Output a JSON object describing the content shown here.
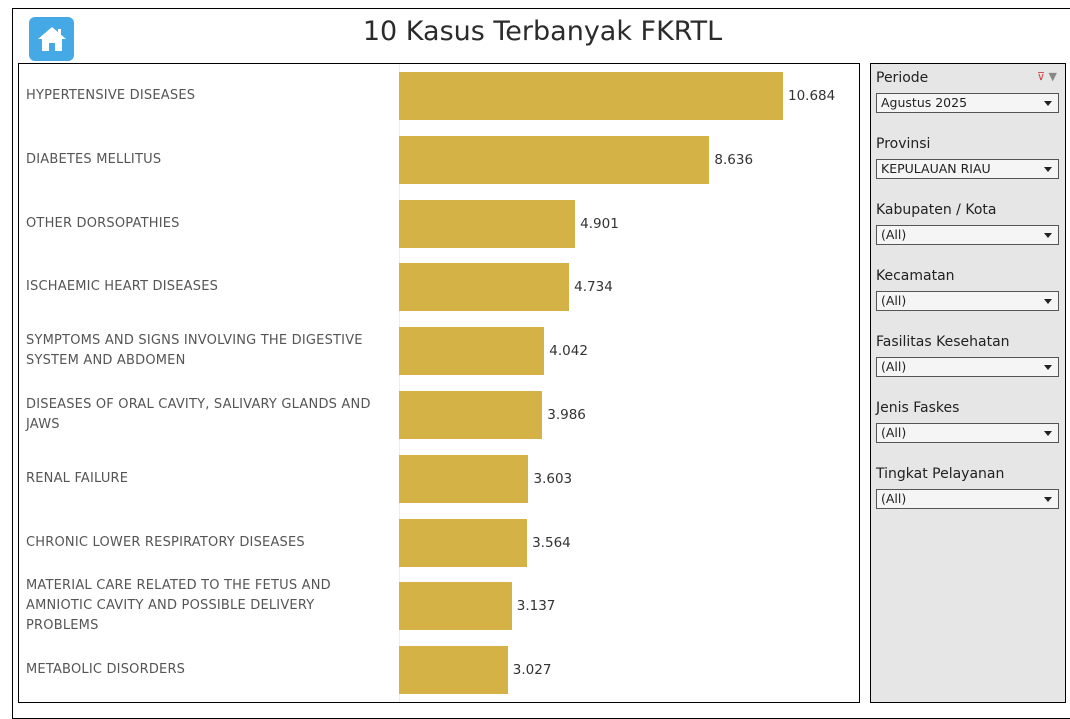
{
  "header": {
    "title": "10 Kasus Terbanyak FKRTL"
  },
  "colors": {
    "bar": "#d4b245",
    "home": "#45a9e6"
  },
  "chart_data": {
    "type": "bar",
    "orientation": "horizontal",
    "title": "10 Kasus Terbanyak FKRTL",
    "categories": [
      "HYPERTENSIVE DISEASES",
      "DIABETES MELLITUS",
      "OTHER DORSOPATHIES",
      "ISCHAEMIC HEART DISEASES",
      "SYMPTOMS AND SIGNS INVOLVING THE DIGESTIVE SYSTEM AND ABDOMEN",
      "DISEASES OF ORAL CAVITY, SALIVARY GLANDS AND JAWS",
      "RENAL FAILURE",
      "CHRONIC LOWER RESPIRATORY DISEASES",
      "MATERIAL CARE RELATED TO THE FETUS AND AMNIOTIC CAVITY AND POSSIBLE DELIVERY PROBLEMS",
      "METABOLIC DISORDERS"
    ],
    "values": [
      10684,
      8636,
      4901,
      4734,
      4042,
      3986,
      3603,
      3564,
      3137,
      3027
    ],
    "labels": [
      "10.684",
      "8.636",
      "4.901",
      "4.734",
      "4.042",
      "3.986",
      "3.603",
      "3.564",
      "3.137",
      "3.027"
    ],
    "xlim": [
      0,
      10684
    ]
  },
  "filters": [
    {
      "label": "Periode",
      "value": "Agustus 2025"
    },
    {
      "label": "Provinsi",
      "value": "KEPULAUAN RIAU"
    },
    {
      "label": "Kabupaten / Kota",
      "value": "(All)"
    },
    {
      "label": "Kecamatan",
      "value": "(All)"
    },
    {
      "label": "Fasilitas Kesehatan",
      "value": "(All)"
    },
    {
      "label": "Jenis Faskes",
      "value": "(All)"
    },
    {
      "label": "Tingkat Pelayanan",
      "value": "(All)"
    }
  ]
}
